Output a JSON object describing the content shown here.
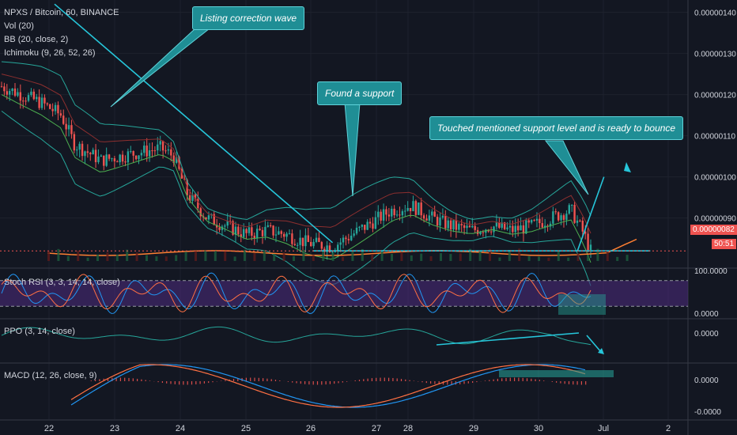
{
  "legend": {
    "symbol": "NPXS / Bitcoin, 60, BINANCE",
    "vol": "Vol (20)",
    "bb": "BB (20, close, 2)",
    "ichimoku": "Ichimoku (9, 26, 52, 26)"
  },
  "panes": {
    "stoch_label": "Stoch RSI (3, 3, 14, 14, close)",
    "ppo_label": "PPO (3, 14, close)",
    "macd_label": "MACD (12, 26, close, 9)"
  },
  "callouts": [
    "Listing correction wave",
    "Found a support",
    "Touched mentioned support level and is ready to bounce"
  ],
  "price_tag": {
    "value": "0.00000082",
    "countdown": "50:51"
  },
  "colors": {
    "bg": "#131722",
    "up": "#26a69a",
    "down": "#ef5350",
    "accent": "#26c6da",
    "callout": "#1f8e95"
  },
  "chart_data": [
    {
      "type": "candlestick",
      "pane": "price",
      "title": "NPXS / Bitcoin, 60, BINANCE",
      "x_ticks": [
        "22",
        "23",
        "24",
        "25",
        "26",
        "27",
        "28",
        "29",
        "30",
        "Jul",
        "2"
      ],
      "y_ticks": [
        "0.00000140",
        "0.00000130",
        "0.00000120",
        "0.00000110",
        "0.00000100",
        "0.00000090",
        "0.00000082"
      ],
      "ylim": [
        7.8e-07,
        1.43e-06
      ],
      "last_price": 8.2e-07,
      "price_path": [
        [
          0.0,
          1.22
        ],
        [
          0.03,
          1.2
        ],
        [
          0.06,
          1.18
        ],
        [
          0.09,
          1.15
        ],
        [
          0.11,
          1.08
        ],
        [
          0.13,
          1.06
        ],
        [
          0.15,
          1.04
        ],
        [
          0.18,
          1.05
        ],
        [
          0.21,
          1.06
        ],
        [
          0.24,
          1.07
        ],
        [
          0.26,
          1.05
        ],
        [
          0.28,
          0.96
        ],
        [
          0.31,
          0.9
        ],
        [
          0.34,
          0.88
        ],
        [
          0.37,
          0.86
        ],
        [
          0.4,
          0.87
        ],
        [
          0.43,
          0.86
        ],
        [
          0.46,
          0.84
        ],
        [
          0.5,
          0.83
        ],
        [
          0.53,
          0.86
        ],
        [
          0.56,
          0.89
        ],
        [
          0.59,
          0.92
        ],
        [
          0.62,
          0.93
        ],
        [
          0.65,
          0.9
        ],
        [
          0.68,
          0.88
        ],
        [
          0.71,
          0.87
        ],
        [
          0.74,
          0.88
        ],
        [
          0.77,
          0.87
        ],
        [
          0.8,
          0.88
        ],
        [
          0.83,
          0.9
        ],
        [
          0.86,
          0.92
        ],
        [
          0.88,
          0.86
        ],
        [
          0.89,
          0.82
        ]
      ],
      "trendlines": [
        {
          "name": "descending",
          "from": [
            0.08,
            1.42
          ],
          "to": [
            0.5,
            0.84
          ]
        },
        {
          "name": "support",
          "from": [
            0.47,
            0.82
          ],
          "to": [
            0.98,
            0.82
          ]
        },
        {
          "name": "bounce-arrow",
          "from": [
            0.87,
            0.82
          ],
          "to": [
            0.91,
            1.0
          ]
        }
      ]
    },
    {
      "type": "line",
      "pane": "stoch_rsi",
      "title": "Stoch RSI (3, 3, 14, 14, close)",
      "y_ticks": [
        "100.0000",
        "0.0000"
      ],
      "ylim": [
        0,
        100
      ],
      "band": [
        20,
        80
      ]
    },
    {
      "type": "line",
      "pane": "ppo",
      "title": "PPO (3, 14, close)",
      "y_ticks": [
        "0.0000"
      ],
      "ylim": [
        -1,
        1
      ]
    },
    {
      "type": "line",
      "pane": "macd",
      "title": "MACD (12, 26, close, 9)",
      "y_ticks": [
        "0.0000",
        "-0.0000"
      ],
      "ylim": [
        -1,
        1
      ]
    }
  ]
}
